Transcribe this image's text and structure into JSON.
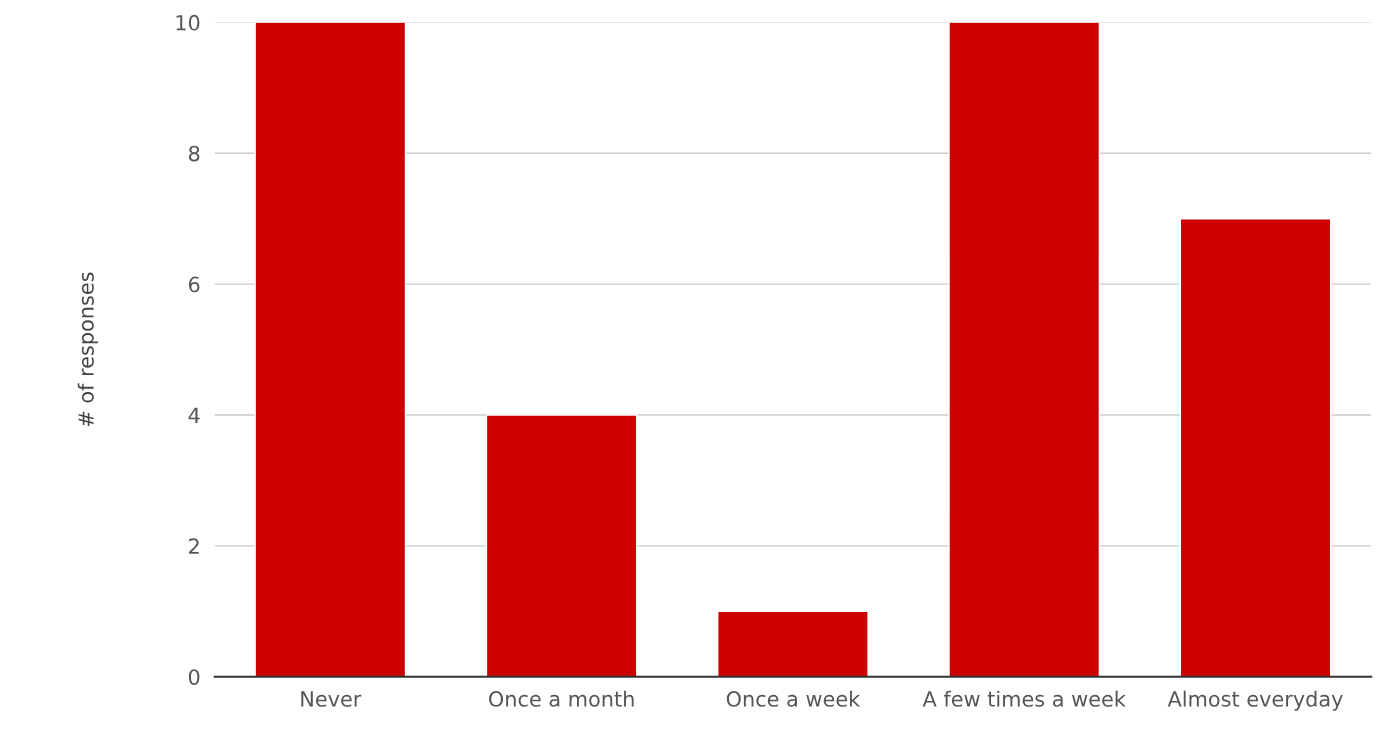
{
  "chart_data": {
    "type": "bar",
    "ylabel": "# of responses",
    "categories": [
      "Never",
      "Once a month",
      "Once a week",
      "A few times a week",
      "Almost everyday"
    ],
    "values": [
      10,
      4,
      1,
      10,
      7
    ],
    "color": "#cc0000",
    "ylim": [
      0,
      10
    ],
    "yticks": [
      0,
      2,
      4,
      6,
      8,
      10
    ],
    "grid": "y",
    "legend": false
  }
}
